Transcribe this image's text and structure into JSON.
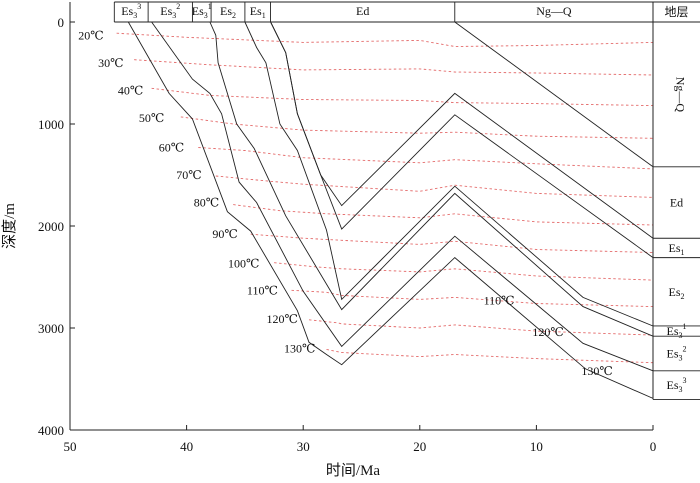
{
  "x_axis": {
    "title": "时间/Ma",
    "ticks": [
      {
        "value": 50,
        "label": "50"
      },
      {
        "value": 40,
        "label": "40"
      },
      {
        "value": 30,
        "label": "30"
      },
      {
        "value": 20,
        "label": "20"
      },
      {
        "value": 10,
        "label": "10"
      },
      {
        "value": 0,
        "label": "0"
      }
    ]
  },
  "y_axis": {
    "title": "深度/m",
    "ticks": [
      {
        "value": 0,
        "label": "0"
      },
      {
        "value": 1000,
        "label": "1000"
      },
      {
        "value": 2000,
        "label": "2000"
      },
      {
        "value": 3000,
        "label": "3000"
      },
      {
        "value": 4000,
        "label": "4000"
      }
    ]
  },
  "top_header": {
    "cells": [
      {
        "base": "Es",
        "sub": "3",
        "sup": "3",
        "from": 46.2,
        "to": 43.3
      },
      {
        "base": "Es",
        "sub": "3",
        "sup": "2",
        "from": 43.3,
        "to": 39.5
      },
      {
        "base": "Es",
        "sub": "3",
        "sup": "1",
        "from": 39.5,
        "to": 37.9
      },
      {
        "base": "Es",
        "sub": "2",
        "sup": "",
        "from": 37.9,
        "to": 35.0
      },
      {
        "base": "Es",
        "sub": "1",
        "sup": "",
        "from": 35.0,
        "to": 32.8
      },
      {
        "base": "Ed",
        "sub": "",
        "sup": "",
        "from": 32.8,
        "to": 17.0
      },
      {
        "base": "Ng—Q",
        "sub": "",
        "sup": "",
        "from": 17.0,
        "to": 0.0
      }
    ]
  },
  "strata_column": {
    "title": "地层",
    "units": [
      {
        "base": "Ng—Q",
        "sub": "",
        "sup": "",
        "top": 0,
        "bottom": 1420,
        "vertical": true
      },
      {
        "base": "Ed",
        "sub": "",
        "sup": "",
        "top": 1420,
        "bottom": 2120,
        "vertical": false
      },
      {
        "base": "Es",
        "sub": "1",
        "sup": "",
        "top": 2120,
        "bottom": 2310,
        "vertical": false
      },
      {
        "base": "Es",
        "sub": "2",
        "sup": "",
        "top": 2310,
        "bottom": 2980,
        "vertical": false
      },
      {
        "base": "Es",
        "sub": "3",
        "sup": "1",
        "top": 2980,
        "bottom": 3080,
        "vertical": false
      },
      {
        "base": "Es",
        "sub": "3",
        "sup": "2",
        "top": 3080,
        "bottom": 3420,
        "vertical": false
      },
      {
        "base": "Es",
        "sub": "3",
        "sup": "3",
        "top": 3420,
        "bottom": 3700,
        "vertical": false
      }
    ]
  },
  "burial_curves": [
    {
      "points": [
        [
          45.0,
          0
        ],
        [
          41.5,
          700
        ],
        [
          39.5,
          950
        ],
        [
          36.5,
          1860
        ],
        [
          34.5,
          2050
        ],
        [
          30.5,
          2830
        ],
        [
          29.5,
          3140
        ],
        [
          28.0,
          3260
        ],
        [
          26.7,
          3360
        ],
        [
          17.0,
          2310
        ],
        [
          5.8,
          3400
        ],
        [
          0.0,
          3690
        ]
      ]
    },
    {
      "points": [
        [
          43.0,
          0
        ],
        [
          39.5,
          560
        ],
        [
          38.0,
          700
        ],
        [
          37.0,
          900
        ],
        [
          35.5,
          1570
        ],
        [
          34.0,
          1770
        ],
        [
          30.0,
          2640
        ],
        [
          26.7,
          3180
        ],
        [
          17.0,
          2100
        ],
        [
          6.0,
          3150
        ],
        [
          0.0,
          3420
        ]
      ]
    },
    {
      "points": [
        [
          38.0,
          0
        ],
        [
          37.5,
          130
        ],
        [
          37.3,
          400
        ],
        [
          35.7,
          1000
        ],
        [
          34.2,
          1240
        ],
        [
          31.5,
          1900
        ],
        [
          26.7,
          2820
        ],
        [
          17.0,
          1680
        ],
        [
          6.0,
          2790
        ],
        [
          0.0,
          3080
        ]
      ]
    },
    {
      "points": [
        [
          35.0,
          0
        ],
        [
          34.0,
          250
        ],
        [
          33.2,
          400
        ],
        [
          32.0,
          1000
        ],
        [
          30.5,
          1260
        ],
        [
          28.0,
          2040
        ],
        [
          26.7,
          2720
        ],
        [
          17.0,
          1610
        ],
        [
          6.0,
          2700
        ],
        [
          0.0,
          2980
        ]
      ]
    },
    {
      "points": [
        [
          32.8,
          0
        ],
        [
          31.5,
          300
        ],
        [
          30.5,
          900
        ],
        [
          28.5,
          1500
        ],
        [
          26.7,
          2030
        ],
        [
          17.0,
          910
        ],
        [
          0.0,
          2310
        ]
      ]
    },
    {
      "points": [
        [
          32.8,
          0
        ],
        [
          31.5,
          300
        ],
        [
          30.5,
          900
        ],
        [
          28.5,
          1500
        ],
        [
          26.7,
          1800
        ],
        [
          17.0,
          700
        ],
        [
          0.0,
          2120
        ]
      ]
    },
    {
      "points": [
        [
          17.0,
          0
        ],
        [
          0.0,
          1420
        ]
      ]
    }
  ],
  "isotherms": [
    {
      "label": "20℃",
      "label_at": [
        48.2,
        130
      ],
      "points": [
        [
          46,
          110
        ],
        [
          40,
          150
        ],
        [
          30,
          200
        ],
        [
          20,
          180
        ],
        [
          17,
          240
        ],
        [
          10,
          230
        ],
        [
          0,
          200
        ]
      ]
    },
    {
      "label": "30℃",
      "label_at": [
        46.5,
        400
      ],
      "points": [
        [
          44.5,
          370
        ],
        [
          38,
          420
        ],
        [
          30,
          470
        ],
        [
          20,
          460
        ],
        [
          17,
          490
        ],
        [
          10,
          500
        ],
        [
          0,
          520
        ]
      ]
    },
    {
      "label": "40℃",
      "label_at": [
        44.8,
        670
      ],
      "points": [
        [
          43,
          650
        ],
        [
          38,
          720
        ],
        [
          30,
          760
        ],
        [
          20,
          770
        ],
        [
          17,
          790
        ],
        [
          10,
          800
        ],
        [
          0,
          820
        ]
      ]
    },
    {
      "label": "50℃",
      "label_at": [
        43.0,
        940
      ],
      "points": [
        [
          40.5,
          930
        ],
        [
          36,
          1000
        ],
        [
          30,
          1060
        ],
        [
          20,
          1090
        ],
        [
          17,
          1080
        ],
        [
          10,
          1120
        ],
        [
          0,
          1140
        ]
      ]
    },
    {
      "label": "60℃",
      "label_at": [
        41.3,
        1230
      ],
      "points": [
        [
          39,
          1230
        ],
        [
          35,
          1260
        ],
        [
          30,
          1330
        ],
        [
          20,
          1380
        ],
        [
          17,
          1350
        ],
        [
          10,
          1390
        ],
        [
          0,
          1440
        ]
      ]
    },
    {
      "label": "70℃",
      "label_at": [
        39.8,
        1500
      ],
      "points": [
        [
          37.5,
          1510
        ],
        [
          33,
          1560
        ],
        [
          30,
          1590
        ],
        [
          20,
          1660
        ],
        [
          17,
          1600
        ],
        [
          10,
          1680
        ],
        [
          0,
          1720
        ]
      ]
    },
    {
      "label": "80℃",
      "label_at": [
        38.3,
        1770
      ],
      "points": [
        [
          36,
          1790
        ],
        [
          32,
          1850
        ],
        [
          28,
          1880
        ],
        [
          20,
          1920
        ],
        [
          17,
          1880
        ],
        [
          10,
          1960
        ],
        [
          0,
          1990
        ]
      ]
    },
    {
      "label": "90℃",
      "label_at": [
        36.7,
        2080
      ],
      "points": [
        [
          34.5,
          2080
        ],
        [
          30,
          2120
        ],
        [
          26.7,
          2140
        ],
        [
          20,
          2180
        ],
        [
          17,
          2150
        ],
        [
          10,
          2230
        ],
        [
          0,
          2260
        ]
      ]
    },
    {
      "label": "100℃",
      "label_at": [
        35.1,
        2370
      ],
      "points": [
        [
          32.5,
          2360
        ],
        [
          29,
          2400
        ],
        [
          26.7,
          2420
        ],
        [
          20,
          2450
        ],
        [
          17,
          2420
        ],
        [
          10,
          2490
        ],
        [
          0,
          2530
        ]
      ]
    },
    {
      "label": "110℃",
      "label_at": [
        33.5,
        2630
      ],
      "points": [
        [
          31,
          2630
        ],
        [
          28,
          2650
        ],
        [
          26.7,
          2680
        ],
        [
          20,
          2720
        ],
        [
          17,
          2700
        ],
        [
          10,
          2760
        ],
        [
          0,
          2790
        ]
      ]
    },
    {
      "label": "120℃",
      "label_at": [
        31.8,
        2910
      ],
      "points": [
        [
          29.5,
          2920
        ],
        [
          27,
          2950
        ],
        [
          26.7,
          2960
        ],
        [
          20,
          3000
        ],
        [
          17,
          2970
        ],
        [
          10,
          3030
        ],
        [
          0,
          3070
        ]
      ]
    },
    {
      "label": "130℃",
      "label_at": [
        30.3,
        3200
      ],
      "points": [
        [
          28,
          3210
        ],
        [
          26.7,
          3240
        ],
        [
          20,
          3280
        ],
        [
          17,
          3260
        ],
        [
          10,
          3300
        ],
        [
          0,
          3340
        ]
      ]
    }
  ],
  "right_labels": [
    {
      "label": "110℃",
      "at": [
        13.2,
        2730
      ]
    },
    {
      "label": "120℃",
      "at": [
        9.0,
        3040
      ]
    },
    {
      "label": "130℃",
      "at": [
        4.8,
        3420
      ]
    }
  ],
  "colors": {
    "curve": "#222222",
    "isotherm": "#e46a6a",
    "frame": "#222222"
  }
}
